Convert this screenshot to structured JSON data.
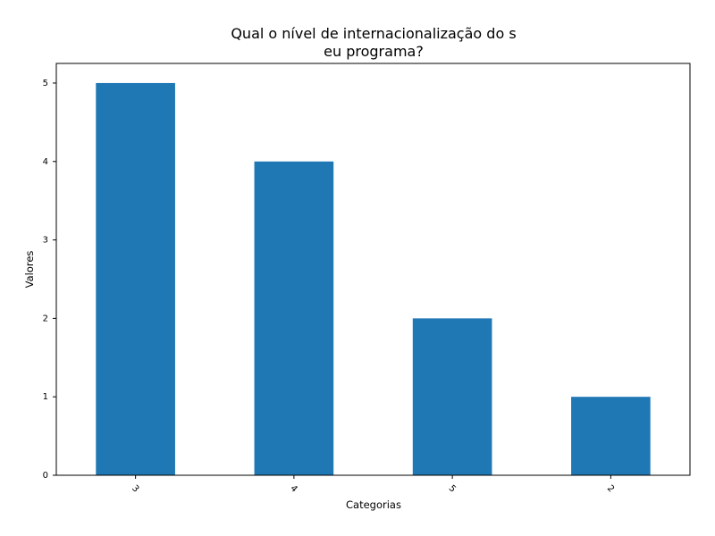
{
  "chart_data": {
    "type": "bar",
    "title_lines": [
      "Qual o nível de internacionalização do s",
      "eu programa?"
    ],
    "xlabel": "Categorias",
    "ylabel": "Valores",
    "categories": [
      "3",
      "4",
      "5",
      "2"
    ],
    "values": [
      5,
      4,
      2,
      1
    ],
    "ylim": [
      0,
      5.25
    ],
    "yticks": [
      "0",
      "1",
      "2",
      "3",
      "4",
      "5"
    ],
    "grid": false,
    "legend": "none",
    "bar_color": "#1f77b4",
    "x_tick_rotation": 45
  }
}
